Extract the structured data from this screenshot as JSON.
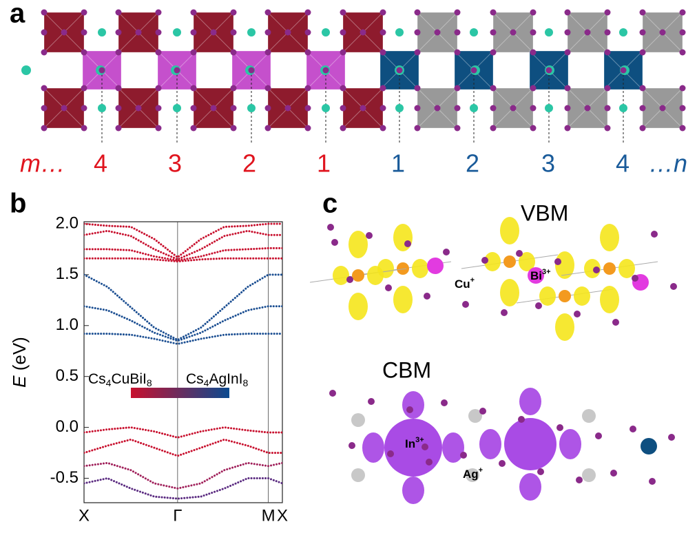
{
  "panel_a": {
    "label": "a",
    "left_numbers": [
      "m…",
      "4",
      "3",
      "2",
      "1"
    ],
    "right_numbers": [
      "1",
      "2",
      "3",
      "4",
      "…n"
    ]
  },
  "chart_data": {
    "type": "line",
    "label": "b",
    "ylabel": [
      "E",
      " (eV)"
    ],
    "x": [
      0,
      0.25,
      0.5,
      0.75,
      1,
      1.25,
      1.5,
      1.75,
      1.97,
      2.12
    ],
    "xlim": [
      0,
      2.12
    ],
    "xticks": [
      {
        "value": 0,
        "label": "X"
      },
      {
        "value": 1,
        "label": "Γ"
      },
      {
        "value": 1.97,
        "label": "M"
      },
      {
        "value": 2.12,
        "label": "X"
      }
    ],
    "ylim": [
      -0.74,
      2.02
    ],
    "yticks": [
      {
        "value": 2.0,
        "label": "2.0"
      },
      {
        "value": 1.5,
        "label": "1.5"
      },
      {
        "value": 1.0,
        "label": "1.0"
      },
      {
        "value": 0.5,
        "label": "0.5"
      },
      {
        "value": 0.0,
        "label": "0.0"
      },
      {
        "value": -0.5,
        "label": "-0.5"
      }
    ],
    "annotations": {
      "left": [
        "Cs",
        "4",
        "CuBiI",
        "8"
      ],
      "right": [
        "Cs",
        "4",
        "AgInI",
        "8"
      ]
    },
    "colorbar": [
      "#c8102e",
      "#0b4a8f"
    ],
    "series": [
      {
        "color": "#1c4f92",
        "values": [
          0.92,
          0.92,
          0.91,
          0.87,
          0.82,
          0.87,
          0.91,
          0.92,
          0.92,
          0.92
        ]
      },
      {
        "color": "#1c4f92",
        "values": [
          1.19,
          1.15,
          1.05,
          0.93,
          0.85,
          0.93,
          1.05,
          1.15,
          1.19,
          1.19
        ]
      },
      {
        "color": "#1c4f92",
        "values": [
          1.5,
          1.38,
          1.18,
          0.98,
          0.86,
          0.98,
          1.18,
          1.38,
          1.5,
          1.5
        ]
      },
      {
        "color": "#c8102e",
        "values": [
          1.66,
          1.66,
          1.66,
          1.65,
          1.63,
          1.65,
          1.66,
          1.66,
          1.66,
          1.66
        ]
      },
      {
        "color": "#c8102e",
        "values": [
          1.75,
          1.75,
          1.74,
          1.68,
          1.64,
          1.68,
          1.74,
          1.75,
          1.76,
          1.76
        ]
      },
      {
        "color": "#c8102e",
        "values": [
          1.89,
          1.93,
          1.88,
          1.75,
          1.65,
          1.75,
          1.88,
          1.93,
          1.89,
          1.89
        ]
      },
      {
        "color": "#c8102e",
        "values": [
          2.0,
          1.98,
          1.97,
          1.85,
          1.67,
          1.85,
          1.97,
          1.98,
          2.0,
          2.0
        ]
      },
      {
        "color": "#c8102e",
        "values": [
          -0.05,
          -0.02,
          0.0,
          -0.04,
          -0.1,
          -0.04,
          0.0,
          -0.03,
          -0.05,
          -0.05
        ]
      },
      {
        "color": "#c8102e",
        "values": [
          -0.25,
          -0.18,
          -0.12,
          -0.2,
          -0.28,
          -0.2,
          -0.12,
          -0.18,
          -0.25,
          -0.25
        ]
      },
      {
        "color": "#a0205a",
        "values": [
          -0.38,
          -0.35,
          -0.42,
          -0.55,
          -0.6,
          -0.55,
          -0.42,
          -0.35,
          -0.38,
          -0.35
        ]
      },
      {
        "color": "#5a2a80",
        "values": [
          -0.55,
          -0.5,
          -0.6,
          -0.68,
          -0.7,
          -0.68,
          -0.6,
          -0.5,
          -0.5,
          -0.55
        ]
      }
    ]
  },
  "panel_c": {
    "label": "c",
    "vbm": "VBM",
    "cbm": "CBM",
    "ions": {
      "cu": [
        "Cu",
        "+"
      ],
      "bi": [
        "Bi",
        "3+"
      ],
      "in": [
        "In",
        "3+"
      ],
      "ag": [
        "Ag",
        "+"
      ]
    }
  }
}
